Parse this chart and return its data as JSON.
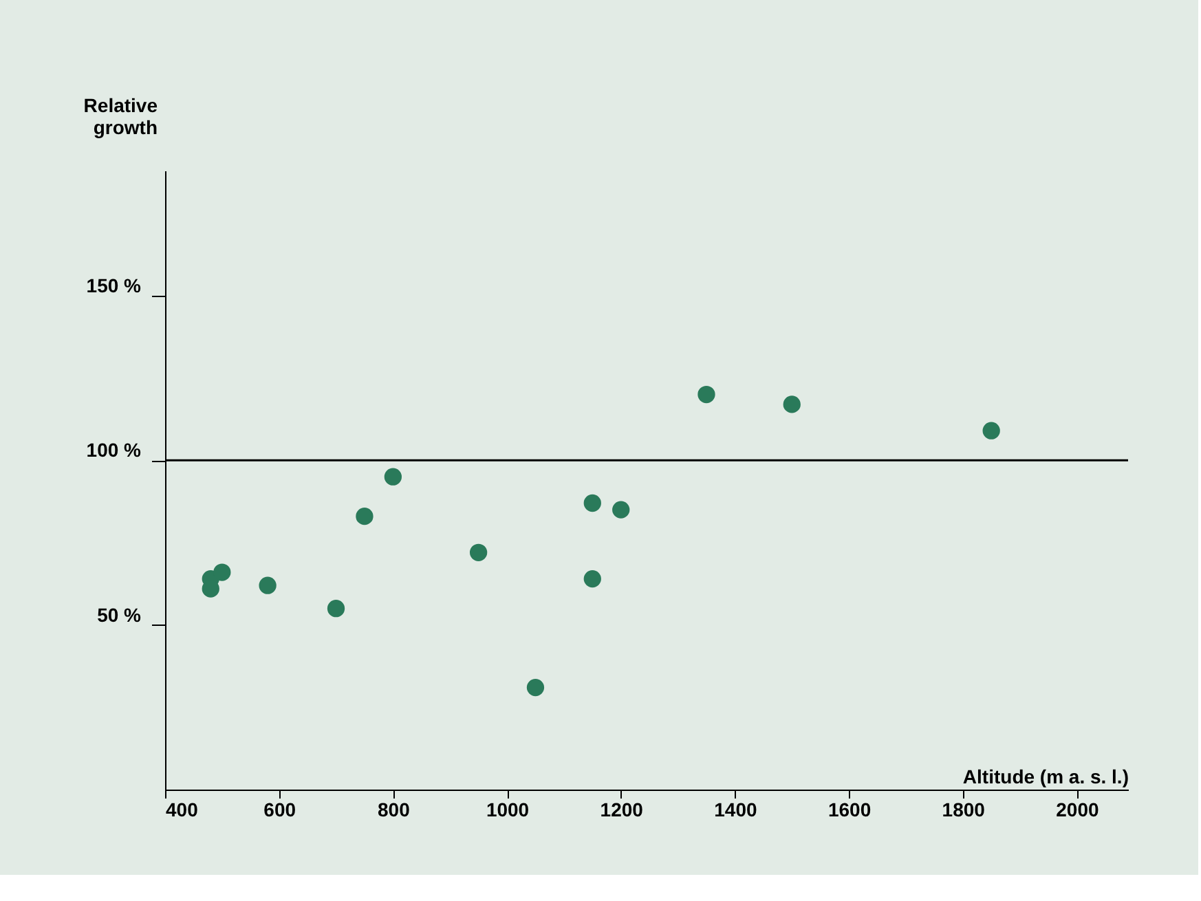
{
  "chart_data": {
    "type": "scatter",
    "xlabel": "Altitude (m a. s. l.)",
    "ylabel": "Relative growth",
    "x": [
      480,
      480,
      500,
      580,
      700,
      750,
      800,
      950,
      1050,
      1150,
      1150,
      1200,
      1350,
      1500,
      1850
    ],
    "values": [
      64,
      61,
      66,
      62,
      55,
      83,
      95,
      72,
      31,
      87,
      64,
      85,
      120,
      117,
      109
    ],
    "color": "#2a7a5a",
    "marker": "circle",
    "xlim": [
      400,
      2090
    ],
    "xticks": [
      400,
      600,
      800,
      1000,
      1200,
      1400,
      1600,
      1800,
      2000
    ],
    "ylim": [
      0,
      188
    ],
    "yticks": [
      {
        "value": 50,
        "label": "50 %"
      },
      {
        "value": 100,
        "label": "100 %"
      },
      {
        "value": 150,
        "label": "150 %"
      }
    ],
    "ref_lines": [
      {
        "axis": "y",
        "value": 100,
        "color": "#000000"
      }
    ],
    "grid": false
  }
}
